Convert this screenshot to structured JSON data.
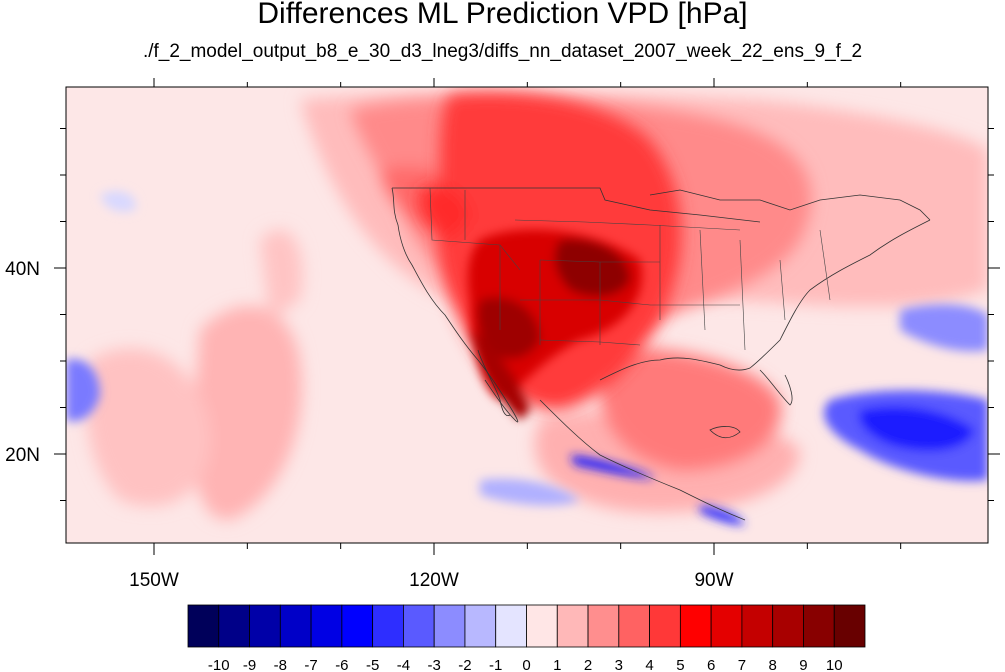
{
  "title": "Differences ML Prediction VPD [hPa]",
  "subtitle": "./f_2_model_output_b8_e_30_d3_lneg3/diffs_nn_dataset_2007_week_22_ens_9_f_2",
  "map": {
    "lat_ticks": [
      {
        "value": 40,
        "label": "40N"
      },
      {
        "value": 20,
        "label": "20N"
      }
    ],
    "lon_ticks": [
      {
        "value": -150,
        "label": "150W"
      },
      {
        "value": -120,
        "label": "120W"
      },
      {
        "value": -90,
        "label": "90W"
      }
    ]
  },
  "colorbar": {
    "labels": [
      "-10",
      "-9",
      "-8",
      "-7",
      "-6",
      "-5",
      "-4",
      "-3",
      "-2",
      "-1",
      "0",
      "1",
      "2",
      "3",
      "4",
      "5",
      "6",
      "7",
      "8",
      "9",
      "10"
    ],
    "colors": [
      "#00005a",
      "#000088",
      "#0000a8",
      "#0000c8",
      "#0000e4",
      "#0000ff",
      "#2e2eff",
      "#5a5aff",
      "#8c8cff",
      "#b8b8ff",
      "#e4e4ff",
      "#ffe6e6",
      "#ffb8b8",
      "#ff8e8e",
      "#ff6262",
      "#ff3838",
      "#ff0000",
      "#e40000",
      "#c40000",
      "#a80000",
      "#880000",
      "#680000"
    ]
  }
}
